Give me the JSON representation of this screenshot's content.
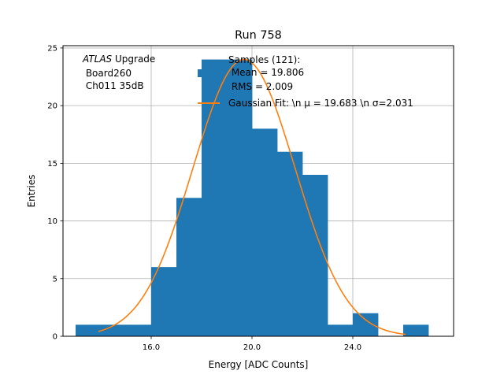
{
  "chart_data": {
    "type": "bar",
    "title": "Run 758",
    "xlabel": "Energy [ADC Counts]",
    "ylabel": "Entries",
    "xlim": [
      12.5,
      28.0
    ],
    "ylim": [
      0,
      25.2
    ],
    "xticks": [
      16,
      20,
      24
    ],
    "xtick_labels": [
      "16.0",
      "20.0",
      "24.0"
    ],
    "yticks": [
      0,
      5,
      10,
      15,
      20,
      25
    ],
    "ytick_labels": [
      "0",
      "5",
      "10",
      "15",
      "20",
      "25"
    ],
    "grid": true,
    "bin_edges": [
      13,
      14,
      15,
      16,
      17,
      18,
      19,
      20,
      21,
      22,
      23,
      24,
      25,
      26,
      27
    ],
    "values": [
      1,
      1,
      1,
      6,
      12,
      24,
      24,
      18,
      16,
      14,
      1,
      2,
      0,
      1
    ],
    "fit": {
      "mu": 19.683,
      "sigma": 2.031,
      "amplitude": 24,
      "x_range": [
        13.9,
        26.1
      ]
    },
    "bar_color": "#1f77b4",
    "fit_color": "#ff7f0e",
    "legend": {
      "placement": "top-center",
      "samples_line1": "Samples (121):",
      "samples_line2": " Mean = 19.806",
      "samples_line3": " RMS = 2.009",
      "fit_label": "Gaussian Fit: \\n μ = 19.683 \\n σ=2.031"
    },
    "annotation": {
      "atlas": "ATLAS",
      "upgrade": " Upgrade",
      "line2": " Board260",
      "line3": " Ch011 35dB"
    }
  }
}
